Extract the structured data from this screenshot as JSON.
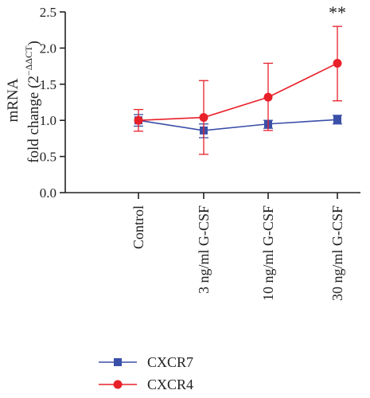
{
  "chart_data": {
    "type": "line",
    "categories": [
      "Control",
      "3 ng/ml G-CSF",
      "10 ng/ml G-CSF",
      "30 ng/ml G-CSF"
    ],
    "ylabel_line1": "mRNA",
    "ylabel_line2": "fold change (2",
    "ylabel_sup": "−ΔΔCT",
    "ylabel_close": ")",
    "ylim": [
      0,
      2.5
    ],
    "yticks": [
      "0.0",
      "0.5",
      "1.0",
      "1.5",
      "2.0",
      "2.5"
    ],
    "grid": false,
    "legend_position": "bottom-left",
    "series": [
      {
        "name": "CXCR7",
        "color": "#3a4fa8",
        "marker": "square",
        "values": [
          1.0,
          0.86,
          0.95,
          1.01
        ],
        "err_low": [
          0.92,
          0.76,
          0.89,
          0.95
        ],
        "err_high": [
          1.08,
          0.95,
          1.0,
          1.07
        ]
      },
      {
        "name": "CXCR4",
        "color": "#e8202a",
        "marker": "circle",
        "values": [
          1.0,
          1.04,
          1.32,
          1.79
        ],
        "err_low": [
          0.85,
          0.53,
          0.86,
          1.27
        ],
        "err_high": [
          1.15,
          1.55,
          1.79,
          2.3
        ]
      }
    ],
    "annotations": [
      {
        "category_index": 3,
        "text": "**"
      }
    ]
  }
}
